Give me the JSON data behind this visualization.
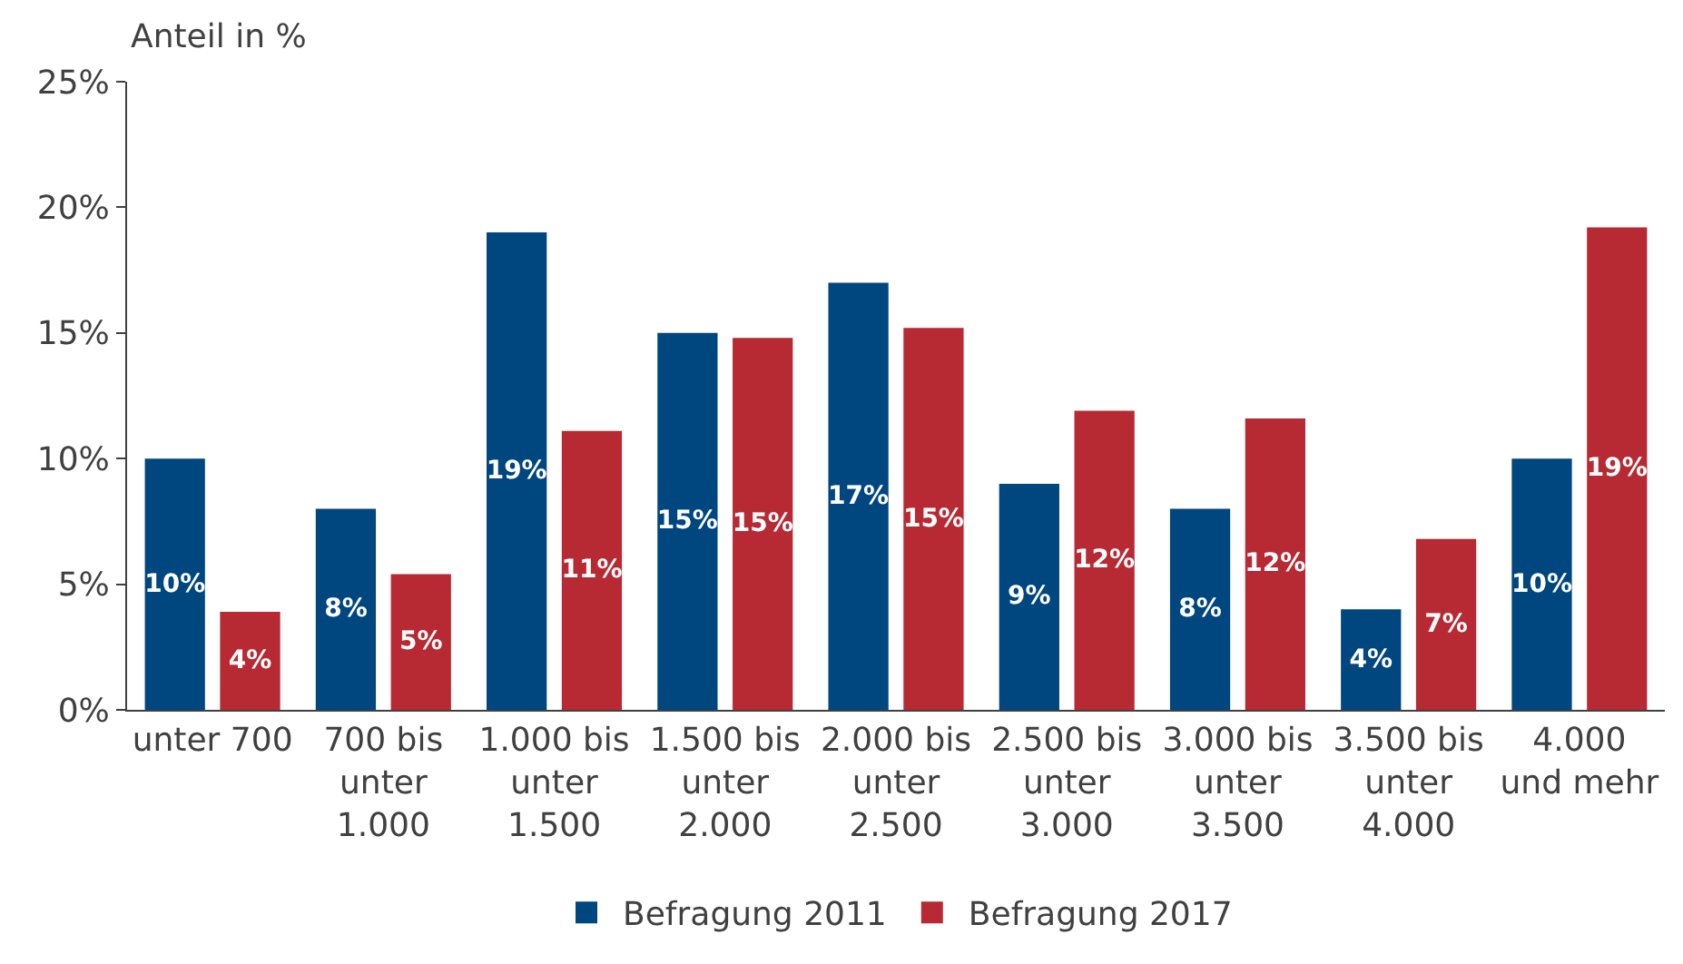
{
  "chart_data": {
    "type": "bar",
    "ylabel": "Anteil in %",
    "categories": [
      "unter 700",
      "700 bis\nunter\n1.000",
      "1.000 bis\nunter\n1.500",
      "1.500 bis\nunter\n2.000",
      "2.000 bis\nunter\n2.500",
      "2.500 bis\nunter\n3.000",
      "3.000 bis\nunter\n3.500",
      "3.500 bis\nunter\n4.000",
      "4.000\nund mehr"
    ],
    "series": [
      {
        "name": "Befragung 2011",
        "color": "#00467f",
        "values": [
          10,
          8,
          19,
          15,
          17,
          9,
          8,
          4,
          10
        ],
        "value_labels": [
          "10%",
          "8%",
          "19%",
          "15%",
          "17%",
          "9%",
          "8%",
          "4%",
          "10%"
        ]
      },
      {
        "name": "Befragung 2017",
        "color": "#b72a33",
        "values": [
          3.9,
          5.4,
          11.1,
          14.8,
          15.2,
          11.9,
          11.6,
          6.8,
          19.2
        ],
        "value_labels": [
          "4%",
          "5%",
          "11%",
          "15%",
          "15%",
          "12%",
          "12%",
          "7%",
          "19%"
        ]
      }
    ],
    "ylim": [
      0,
      25
    ],
    "yticks": [
      {
        "value": 0,
        "label": "0%"
      },
      {
        "value": 5,
        "label": "5%"
      },
      {
        "value": 10,
        "label": "10%"
      },
      {
        "value": 15,
        "label": "15%"
      },
      {
        "value": 20,
        "label": "20%"
      },
      {
        "value": 25,
        "label": "25%"
      }
    ],
    "legend": "bottom"
  }
}
